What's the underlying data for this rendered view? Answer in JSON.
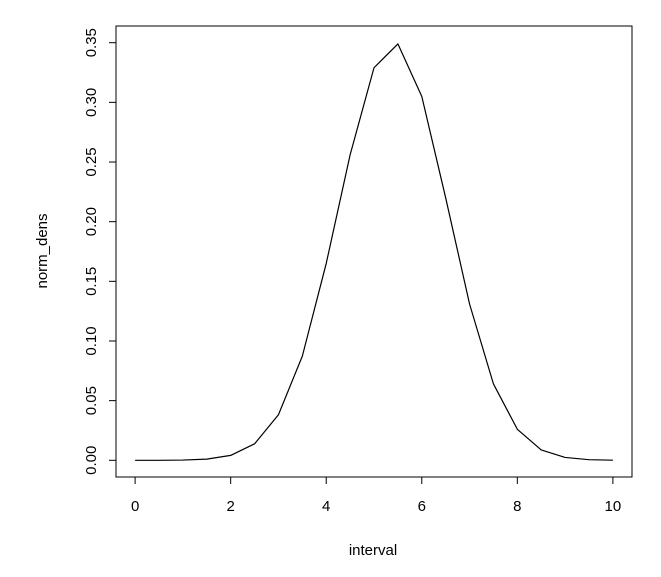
{
  "chart_data": {
    "type": "line",
    "xlabel": "interval",
    "ylabel": "norm_dens",
    "x": [
      0,
      0.5,
      1,
      1.5,
      2,
      2.5,
      3,
      3.5,
      4,
      4.5,
      5,
      5.5,
      6,
      6.5,
      7,
      7.5,
      8,
      8.5,
      9,
      9.5,
      10
    ],
    "values": [
      0.0,
      0.0,
      0.0002,
      0.001,
      0.0041,
      0.0138,
      0.0382,
      0.0873,
      0.165,
      0.256,
      0.329,
      0.349,
      0.305,
      0.22,
      0.131,
      0.064,
      0.026,
      0.0087,
      0.0024,
      0.0005,
      0.0001
    ],
    "color": "#000000",
    "xlim": [
      -0.4,
      10.4
    ],
    "ylim": [
      -0.014,
      0.364
    ],
    "xticks": [
      0,
      2,
      4,
      6,
      8,
      10
    ],
    "yticks": [
      {
        "value": 0,
        "label": "0.00"
      },
      0.05,
      {
        "value": 0.1,
        "label": "0.10"
      },
      0.15,
      {
        "value": 0.2,
        "label": "0.20"
      },
      0.25,
      {
        "value": 0.3,
        "label": "0.30"
      },
      0.35
    ]
  }
}
